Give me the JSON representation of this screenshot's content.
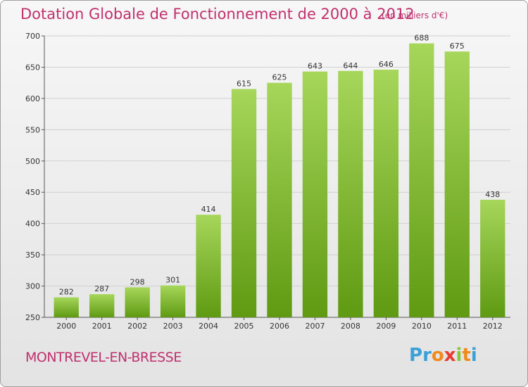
{
  "title": "Dotation Globale de Fonctionnement de 2000 à 2012",
  "unit_note": "(en milliers d'€)",
  "commune": "MONTREVEL-EN-BRESSE",
  "logo": {
    "letters": [
      "P",
      "r",
      "o",
      "x",
      "i",
      "t",
      "i"
    ],
    "colors": [
      "#3aa0d8",
      "#3aa0d8",
      "#f08a1c",
      "#e83a2e",
      "#8bc53f",
      "#f08a1c",
      "#3aa0d8"
    ]
  },
  "colors": {
    "bar_top": "#a6d65a",
    "bar_bottom": "#5f9a12",
    "text_accent": "#c0306e"
  },
  "chart_data": {
    "type": "bar",
    "categories": [
      "2000",
      "2001",
      "2002",
      "2003",
      "2004",
      "2005",
      "2006",
      "2007",
      "2008",
      "2009",
      "2010",
      "2011",
      "2012"
    ],
    "values": [
      282,
      287,
      298,
      301,
      414,
      615,
      625,
      643,
      644,
      646,
      688,
      675,
      438
    ],
    "value_labels": [
      "282",
      "287",
      "298",
      "301",
      "414",
      "615",
      "625",
      "643",
      "644",
      "646",
      "688",
      "675",
      "438"
    ],
    "title": "Dotation Globale de Fonctionnement de 2000 à 2012",
    "xlabel": "",
    "ylabel": "",
    "ylim": [
      250,
      700
    ],
    "yticks": [
      250,
      300,
      350,
      400,
      450,
      500,
      550,
      600,
      650,
      700
    ],
    "grid": true
  }
}
